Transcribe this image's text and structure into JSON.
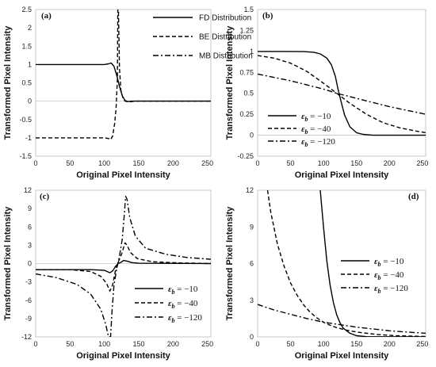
{
  "chart_data": [
    {
      "panel": "(a)",
      "type": "line",
      "xlabel": "Original Pixel Intensity",
      "ylabel": "Transformed Pixel Intensity",
      "xlim": [
        0,
        255
      ],
      "ylim": [
        -1.5,
        2.5
      ],
      "xticks": [
        "0",
        "50",
        "100",
        "150",
        "200",
        "250"
      ],
      "yticks": [
        "-1.5",
        "-1",
        "-0.5",
        "0",
        "0.5",
        "1",
        "1.5",
        "2",
        "2.5"
      ],
      "grid": false,
      "legend_position": "top-right",
      "series": [
        {
          "name": "FD Distribution",
          "style": "solid",
          "x": [
            0,
            60,
            100,
            106,
            110,
            114,
            118,
            122,
            126,
            130,
            134,
            140,
            150,
            255
          ],
          "values": [
            1,
            1,
            1,
            1.02,
            1.04,
            0.95,
            0.7,
            0.4,
            0.15,
            0.02,
            -0.01,
            0,
            0,
            0
          ]
        },
        {
          "name": "BE Distribution",
          "style": "dashed",
          "x": [
            0,
            60,
            100,
            106,
            109,
            112,
            115,
            117,
            119,
            119.5,
            120.5,
            121,
            122,
            124,
            127,
            130,
            135,
            145,
            255
          ],
          "values": [
            -1,
            -1,
            -1,
            -1.02,
            -1.05,
            -0.95,
            -0.6,
            -0.2,
            0.6,
            2.5,
            2.5,
            1.9,
            0.9,
            0.3,
            0.08,
            0.0,
            -0.02,
            0,
            0
          ]
        },
        {
          "name": "MB Distribution",
          "style": "dashdot",
          "x": [],
          "values": []
        }
      ]
    },
    {
      "panel": "(b)",
      "type": "line",
      "xlabel": "Original Pixel Intensity",
      "ylabel": "Transformed Pixel Intensity",
      "xlim": [
        0,
        255
      ],
      "ylim": [
        -0.25,
        1.5
      ],
      "xticks": [
        "0",
        "50",
        "100",
        "150",
        "200",
        "250"
      ],
      "yticks": [
        "-0.25",
        "0",
        "0.25",
        "0.5",
        "0.75",
        "1",
        "1.25",
        "1.5"
      ],
      "grid": false,
      "legend_position": "bottom-left",
      "series": [
        {
          "name": "ε_b = −10",
          "style": "solid",
          "x": [
            0,
            40,
            70,
            85,
            95,
            105,
            112,
            118,
            122,
            126,
            132,
            140,
            150,
            160,
            175,
            200,
            255
          ],
          "values": [
            1,
            1,
            0.998,
            0.99,
            0.97,
            0.92,
            0.84,
            0.7,
            0.55,
            0.42,
            0.24,
            0.1,
            0.03,
            0.01,
            0,
            0,
            0
          ]
        },
        {
          "name": "ε_b = −40",
          "style": "dashed",
          "x": [
            0,
            25,
            50,
            75,
            100,
            120,
            140,
            165,
            190,
            215,
            240,
            255
          ],
          "values": [
            0.95,
            0.92,
            0.86,
            0.76,
            0.62,
            0.5,
            0.38,
            0.25,
            0.15,
            0.09,
            0.05,
            0.03
          ]
        },
        {
          "name": "ε_b = −120",
          "style": "dashdot",
          "x": [
            0,
            50,
            100,
            120,
            150,
            200,
            255
          ],
          "values": [
            0.73,
            0.65,
            0.55,
            0.5,
            0.44,
            0.34,
            0.25
          ]
        }
      ]
    },
    {
      "panel": "(c)",
      "type": "line",
      "xlabel": "Original Pixel Intensity",
      "ylabel": "Transformed Pixel Intensity",
      "xlim": [
        0,
        255
      ],
      "ylim": [
        -12,
        12
      ],
      "xticks": [
        "0",
        "50",
        "100",
        "150",
        "200",
        "250"
      ],
      "yticks": [
        "-12",
        "-9",
        "-6",
        "-3",
        "0",
        "3",
        "6",
        "9",
        "12"
      ],
      "grid": false,
      "legend_position": "bottom-right",
      "series": [
        {
          "name": "ε_b = −10",
          "style": "solid",
          "x": [
            0,
            80,
            100,
            108,
            112,
            116,
            120,
            124,
            128,
            133,
            140,
            150,
            255
          ],
          "values": [
            -1,
            -1,
            -1.1,
            -1.5,
            -1.2,
            -0.5,
            0,
            0.2,
            0.5,
            0.4,
            0.15,
            0.05,
            0
          ]
        },
        {
          "name": "ε_b = −40",
          "style": "dashed",
          "x": [
            0,
            50,
            80,
            95,
            103,
            108,
            112,
            116,
            120,
            125,
            130,
            133,
            138,
            148,
            170,
            210,
            255
          ],
          "values": [
            -1,
            -1,
            -1.3,
            -2.1,
            -3.2,
            -4.5,
            -3.5,
            -1.2,
            0.2,
            1.5,
            3.4,
            3.0,
            1.8,
            0.8,
            0.3,
            0.1,
            0
          ]
        },
        {
          "name": "ε_b = −120",
          "style": "dashdot",
          "x": [
            0,
            30,
            60,
            80,
            95,
            102,
            106,
            109,
            111,
            114,
            118,
            122,
            126,
            129,
            131,
            133,
            137,
            145,
            160,
            190,
            220,
            255
          ],
          "values": [
            -1.7,
            -2.3,
            -3.4,
            -5.0,
            -7.5,
            -10.0,
            -12,
            -12,
            -8.0,
            -3.5,
            -0.8,
            1.2,
            4.0,
            8.0,
            11.0,
            10.5,
            7.5,
            4.5,
            2.5,
            1.5,
            1.0,
            0.7
          ]
        }
      ]
    },
    {
      "panel": "(d)",
      "type": "line",
      "xlabel": "Original Pixel Intensity",
      "ylabel": "Transformed Pixel Intensity",
      "xlim": [
        0,
        255
      ],
      "ylim": [
        0,
        12
      ],
      "xticks": [
        "0",
        "50",
        "100",
        "150",
        "200",
        "250"
      ],
      "yticks": [
        "0",
        "3",
        "6",
        "9",
        "12"
      ],
      "grid": false,
      "legend_position": "center-right",
      "series": [
        {
          "name": "ε_b = −10",
          "style": "solid",
          "x": [
            95,
            100,
            105,
            110,
            115,
            120,
            125,
            130,
            140,
            150,
            165,
            255
          ],
          "values": [
            12,
            9.0,
            6.2,
            4.2,
            2.8,
            1.8,
            1.15,
            0.7,
            0.3,
            0.1,
            0.02,
            0
          ]
        },
        {
          "name": "ε_b = −40",
          "style": "dashed",
          "x": [
            15,
            20,
            30,
            40,
            50,
            60,
            70,
            80,
            90,
            100,
            110,
            120,
            135,
            150,
            180,
            210,
            255
          ],
          "values": [
            12,
            10.2,
            7.6,
            5.8,
            4.4,
            3.4,
            2.6,
            2.0,
            1.55,
            1.2,
            0.95,
            0.75,
            0.55,
            0.4,
            0.2,
            0.1,
            0.03
          ]
        },
        {
          "name": "ε_b = −120",
          "style": "dashdot",
          "x": [
            0,
            25,
            50,
            75,
            100,
            125,
            150,
            175,
            200,
            225,
            255
          ],
          "values": [
            2.65,
            2.2,
            1.85,
            1.5,
            1.2,
            1.0,
            0.8,
            0.65,
            0.5,
            0.4,
            0.3
          ]
        }
      ]
    }
  ]
}
